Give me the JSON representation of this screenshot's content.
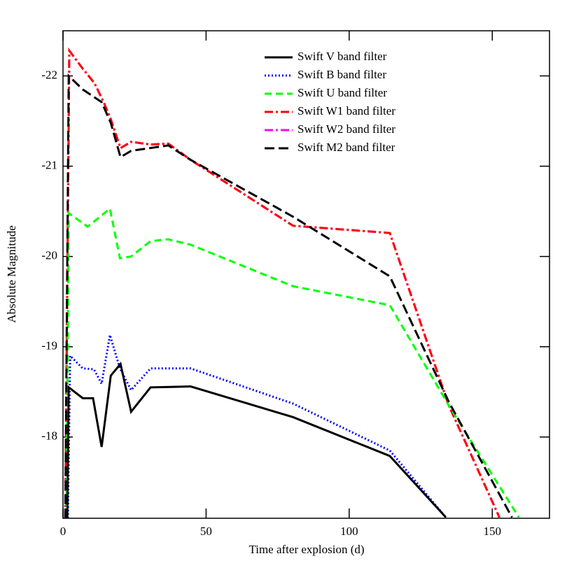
{
  "chart_data": {
    "type": "line",
    "xlabel": "Time after explosion (d)",
    "ylabel": "Absolute Magnitude",
    "xlim": [
      0,
      170
    ],
    "xticks": [
      0,
      50,
      100,
      150
    ],
    "ylim": [
      -17.1,
      -22.5
    ],
    "yticks": [
      -22,
      -21,
      -20,
      -19,
      -18
    ],
    "series": [
      {
        "name": "Swift V band filter",
        "color": "#000000",
        "dash": "none",
        "x": [
          1.5,
          2,
          6.9,
          10.5,
          13.5,
          16.7,
          20.1,
          23.8,
          30.6,
          44.6,
          80.4,
          114.2,
          133.8
        ],
        "values": [
          -17.1,
          -18.55,
          -18.43,
          -18.43,
          -17.89,
          -18.68,
          -18.81,
          -18.28,
          -18.55,
          -18.56,
          -18.22,
          -17.79,
          -17.11
        ]
      },
      {
        "name": "Swift B band filter",
        "color": "#0000ff",
        "dash": "2,3",
        "x": [
          1.7,
          2.5,
          6.9,
          10.8,
          13.5,
          16.4,
          19.9,
          23.8,
          30.6,
          44.6,
          80.4,
          114.2,
          133.8
        ],
        "values": [
          -17.1,
          -18.9,
          -18.76,
          -18.75,
          -18.59,
          -19.13,
          -18.76,
          -18.52,
          -18.76,
          -18.76,
          -18.37,
          -17.85,
          -17.11
        ]
      },
      {
        "name": "Swift U band filter",
        "color": "#00ff00",
        "dash": "10,6",
        "x": [
          1.2,
          2,
          8.6,
          16.4,
          19.9,
          23.8,
          30.6,
          36.8,
          44.6,
          80.4,
          114.2,
          134.8,
          159.3
        ],
        "values": [
          -17.1,
          -20.48,
          -20.33,
          -20.53,
          -19.98,
          -20,
          -20.17,
          -20.19,
          -20.13,
          -19.67,
          -19.46,
          -18.35,
          -17.11
        ]
      },
      {
        "name": "Swift W1 band filter",
        "color": "#ff0000",
        "dash": "12,4,3,4",
        "x": [
          0.8,
          2.2,
          6.9,
          11,
          14.2,
          16.7,
          20.1,
          23.8,
          30.6,
          36.8,
          44.6,
          80.4,
          114.2,
          134.8,
          152.5
        ],
        "values": [
          -17.1,
          -22.28,
          -22.08,
          -21.92,
          -21.71,
          -21.52,
          -21.2,
          -21.27,
          -21.24,
          -21.25,
          -21.07,
          -20.34,
          -20.26,
          -18.35,
          -17.11
        ]
      },
      {
        "name": "Swift W2 band filter",
        "color": "#ff00ff",
        "dash": "12,4,3,4",
        "x": [
          0.8,
          2.2,
          6.9,
          11,
          14.2,
          16.7,
          20.1,
          23.8,
          30.6,
          36.8,
          44.6,
          80.4,
          114.2,
          134.8,
          152.5
        ],
        "values": [
          -17.1,
          -22.28,
          -22.08,
          -21.92,
          -21.71,
          -21.52,
          -21.2,
          -21.27,
          -21.24,
          -21.25,
          -21.07,
          -20.34,
          -20.26,
          -18.35,
          -17.11
        ]
      },
      {
        "name": "Swift M2 band filter",
        "color": "#000000",
        "dash": "14,6",
        "x": [
          0.8,
          2,
          6.9,
          13.5,
          16.7,
          20.1,
          23.8,
          36.8,
          44.6,
          80.4,
          114.2,
          134.8,
          156.9
        ],
        "values": [
          -17.1,
          -22,
          -21.85,
          -21.71,
          -21.48,
          -21.1,
          -21.17,
          -21.23,
          -21.07,
          -20.44,
          -19.78,
          -18.39,
          -17.11
        ]
      }
    ]
  }
}
